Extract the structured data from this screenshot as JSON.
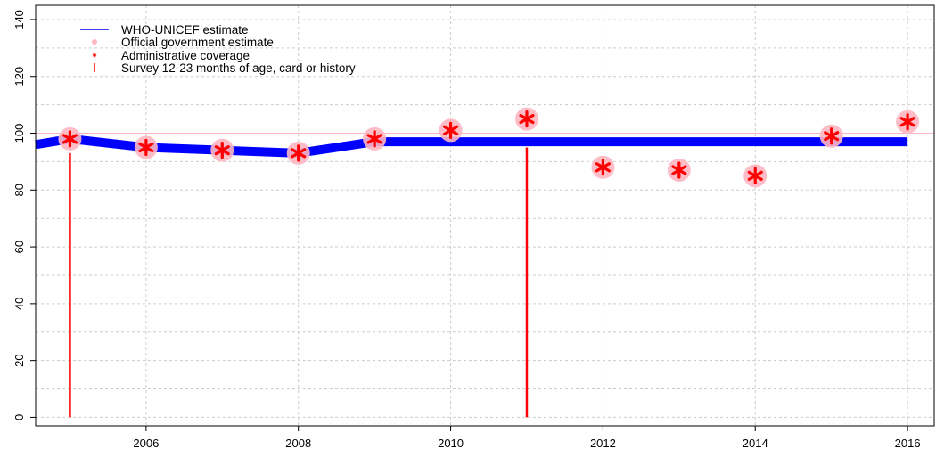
{
  "chart_data": {
    "type": "line",
    "title": "",
    "xlabel": "",
    "ylabel": "",
    "xlim": [
      2004.55,
      2016.35
    ],
    "ylim": [
      -3,
      145
    ],
    "x_ticks": [
      2006,
      2008,
      2010,
      2012,
      2014,
      2016
    ],
    "y_ticks": [
      0,
      20,
      40,
      60,
      80,
      100,
      120,
      140
    ],
    "x_tick_labels": [
      "2006",
      "2008",
      "2010",
      "2012",
      "2014",
      "2016"
    ],
    "y_tick_labels": [
      "0",
      "20",
      "40",
      "60",
      "80",
      "100",
      "120",
      "140"
    ],
    "grid": true,
    "reference_line": 100,
    "legend_position": "top-left",
    "legend": [
      {
        "label": "WHO-UNICEF estimate",
        "symbol": "line",
        "color": "#0000ff"
      },
      {
        "label": "Official government estimate",
        "symbol": "dot",
        "color": "#ffb6c1"
      },
      {
        "label": "Administrative coverage",
        "symbol": "asterisk",
        "color": "#ff0000"
      },
      {
        "label": "Survey 12-23 months of age, card or history",
        "symbol": "bar",
        "color": "#ff0000"
      }
    ],
    "series": [
      {
        "name": "WHO-UNICEF estimate",
        "color": "#0000ff",
        "x": [
          2004.55,
          2005,
          2006,
          2007,
          2008,
          2009,
          2010,
          2011,
          2012,
          2013,
          2014,
          2015,
          2016
        ],
        "values": [
          96,
          98,
          95,
          94,
          93,
          97,
          97,
          97,
          97,
          97,
          97,
          97,
          97
        ]
      },
      {
        "name": "Official government estimate",
        "color": "#ffb6c1",
        "x": [
          2005,
          2006,
          2007,
          2008,
          2009,
          2010,
          2011,
          2012,
          2013,
          2014,
          2015,
          2016
        ],
        "values": [
          98,
          95,
          94,
          93,
          98,
          101,
          105,
          88,
          87,
          85,
          99,
          104
        ]
      },
      {
        "name": "Administrative coverage",
        "color": "#ff0000",
        "x": [
          2005,
          2006,
          2007,
          2008,
          2009,
          2010,
          2011,
          2012,
          2013,
          2014,
          2015,
          2016
        ],
        "values": [
          98,
          95,
          94,
          93,
          98,
          101,
          105,
          88,
          87,
          85,
          99,
          104
        ]
      },
      {
        "name": "Survey 12-23 months of age, card or history",
        "color": "#ff0000",
        "x": [
          2005,
          2011
        ],
        "values": [
          93,
          95
        ]
      }
    ]
  }
}
